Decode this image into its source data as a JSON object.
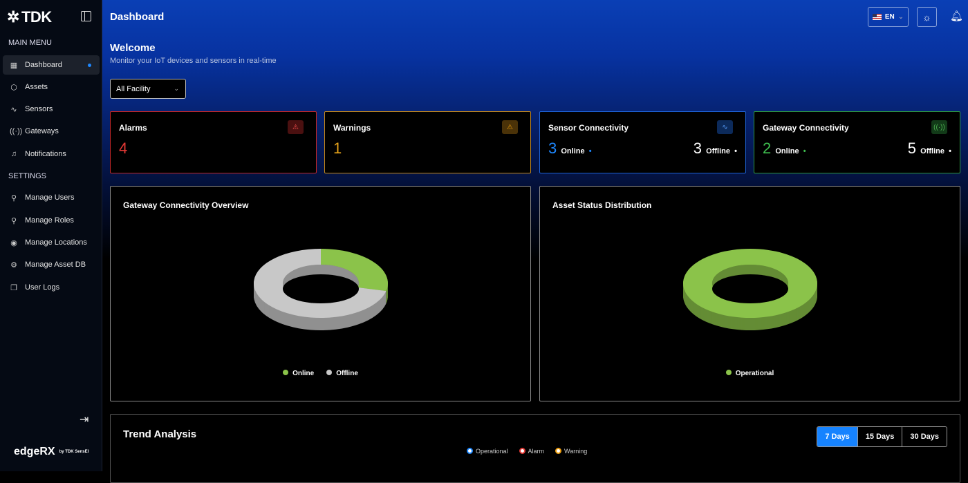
{
  "brand": {
    "logo": "TDK",
    "footer_logo": "edgeRX",
    "footer_by": "by TDK SensEI"
  },
  "sidebar": {
    "main_menu_label": "MAIN MENU",
    "main_items": [
      {
        "label": "Dashboard",
        "icon": "grid-icon"
      },
      {
        "label": "Assets",
        "icon": "box-icon"
      },
      {
        "label": "Sensors",
        "icon": "activity-icon"
      },
      {
        "label": "Gateways",
        "icon": "radio-icon"
      },
      {
        "label": "Notifications",
        "icon": "bell-icon"
      }
    ],
    "settings_label": "SETTINGS",
    "settings_items": [
      {
        "label": "Manage Users",
        "icon": "user-icon"
      },
      {
        "label": "Manage Roles",
        "icon": "user-cog-icon"
      },
      {
        "label": "Manage Locations",
        "icon": "map-pin-icon"
      },
      {
        "label": "Manage Asset DB",
        "icon": "database-icon"
      },
      {
        "label": "User Logs",
        "icon": "copy-icon"
      }
    ]
  },
  "header": {
    "title": "Dashboard",
    "language": "EN"
  },
  "welcome": {
    "title": "Welcome",
    "subtitle": "Monitor your IoT devices and sensors in real-time"
  },
  "filter": {
    "selected": "All Facility"
  },
  "cards": {
    "alarms": {
      "title": "Alarms",
      "value": "4",
      "color": "#e53935"
    },
    "warnings": {
      "title": "Warnings",
      "value": "1",
      "color": "#e5a21a"
    },
    "sensor": {
      "title": "Sensor Connectivity",
      "online": "3",
      "online_label": "Online",
      "offline": "3",
      "offline_label": "Offline"
    },
    "gateway": {
      "title": "Gateway Connectivity",
      "online": "2",
      "online_label": "Online",
      "offline": "5",
      "offline_label": "Offline"
    }
  },
  "chart_data": [
    {
      "type": "pie",
      "title": "Gateway Connectivity Overview",
      "categories": [
        "Online",
        "Offline"
      ],
      "values": [
        2,
        5
      ],
      "colors": [
        "#8bc34a",
        "#c8c8c8"
      ],
      "legend": "bottom"
    },
    {
      "type": "pie",
      "title": "Asset Status Distribution",
      "categories": [
        "Operational"
      ],
      "values": [
        1
      ],
      "colors": [
        "#8bc34a"
      ],
      "legend": "bottom"
    }
  ],
  "trend": {
    "title": "Trend Analysis",
    "ranges": [
      "7 Days",
      "15 Days",
      "30 Days"
    ],
    "active": "7 Days",
    "legend": [
      {
        "label": "Operational",
        "color": "#1e88ff"
      },
      {
        "label": "Alarm",
        "color": "#e53935"
      },
      {
        "label": "Warning",
        "color": "#f0a010"
      }
    ]
  }
}
